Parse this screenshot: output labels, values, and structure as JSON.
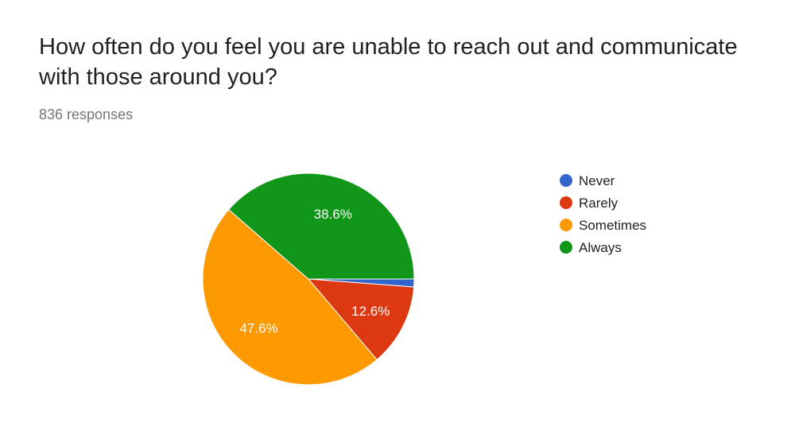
{
  "title": "How often do you feel you are unable to reach out and communicate with those around you?",
  "subtitle": "836 responses",
  "chart_data": {
    "type": "pie",
    "categories": [
      "Never",
      "Rarely",
      "Sometimes",
      "Always"
    ],
    "values": [
      1.2,
      12.6,
      47.6,
      38.6
    ],
    "labels": [
      "",
      "12.6%",
      "47.6%",
      "38.6%"
    ],
    "colors": [
      "#3366cc",
      "#dc3912",
      "#ff9900",
      "#109618"
    ],
    "legend_position": "right"
  }
}
